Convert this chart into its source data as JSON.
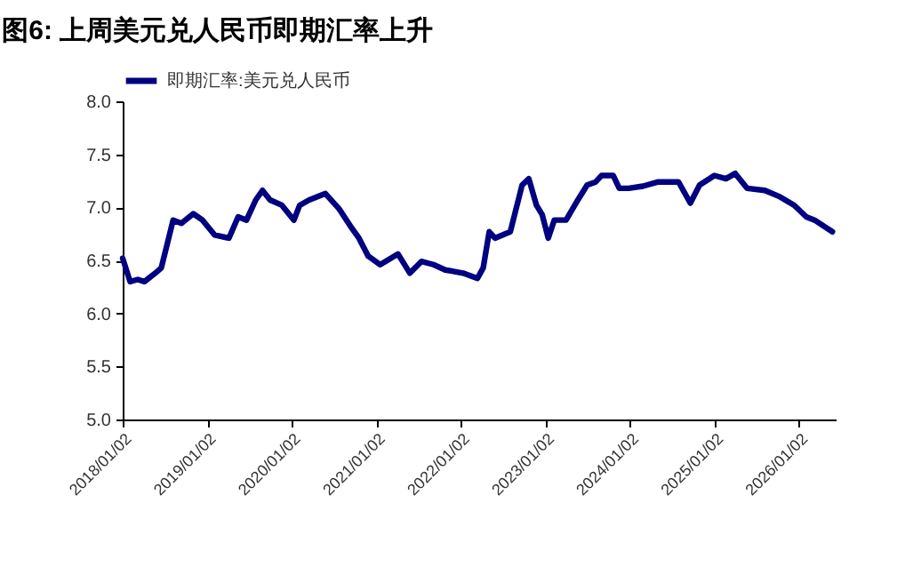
{
  "chart_data": {
    "type": "line",
    "title": "图6:  上周美元兑人民币即期汇率上升",
    "x": [
      "2018-01-02",
      "2018-02-03",
      "2018-03-08",
      "2018-04-06",
      "2018-05-23",
      "2018-06-18",
      "2018-07-14",
      "2018-08-08",
      "2018-09-13",
      "2018-11-03",
      "2018-12-13",
      "2019-02-03",
      "2019-04-06",
      "2019-05-16",
      "2019-06-21",
      "2019-07-31",
      "2019-08-29",
      "2019-10-01",
      "2019-11-21",
      "2020-01-12",
      "2020-02-06",
      "2020-03-18",
      "2020-05-27",
      "2020-07-24",
      "2020-09-13",
      "2020-10-19",
      "2020-11-28",
      "2021-01-19",
      "2021-04-06",
      "2021-05-27",
      "2021-07-16",
      "2021-09-06",
      "2021-10-27",
      "2022-01-12",
      "2022-03-15",
      "2022-04-09",
      "2022-05-05",
      "2022-05-30",
      "2022-08-04",
      "2022-09-24",
      "2022-10-23",
      "2022-11-25",
      "2022-12-20",
      "2023-01-15",
      "2023-02-10",
      "2023-04-02",
      "2023-05-23",
      "2023-07-02",
      "2023-08-08",
      "2023-09-02",
      "2023-10-23",
      "2023-11-18",
      "2023-12-28",
      "2024-02-28",
      "2024-05-04",
      "2024-07-31",
      "2024-09-20",
      "2024-10-30",
      "2025-01-02",
      "2025-02-21",
      "2025-04-02",
      "2025-05-23",
      "2025-08-08",
      "2025-10-12",
      "2025-12-13",
      "2026-02-03",
      "2026-03-11",
      "2026-05-27"
    ],
    "series": [
      {
        "name": "即期汇率:美元兑人民币",
        "color": "#000080",
        "values": [
          6.52,
          6.3,
          6.32,
          6.3,
          6.38,
          6.43,
          6.66,
          6.88,
          6.85,
          6.94,
          6.88,
          6.74,
          6.71,
          6.91,
          6.88,
          7.07,
          7.16,
          7.07,
          7.02,
          6.88,
          7.02,
          7.07,
          7.13,
          6.99,
          6.82,
          6.71,
          6.54,
          6.46,
          6.56,
          6.38,
          6.49,
          6.46,
          6.41,
          6.38,
          6.33,
          6.43,
          6.77,
          6.71,
          6.77,
          7.21,
          7.27,
          7.02,
          6.93,
          6.71,
          6.88,
          6.88,
          7.07,
          7.21,
          7.24,
          7.3,
          7.3,
          7.18,
          7.18,
          7.2,
          7.24,
          7.24,
          7.04,
          7.21,
          7.3,
          7.27,
          7.32,
          7.18,
          7.16,
          7.1,
          7.02,
          6.91,
          6.88,
          6.77
        ]
      }
    ],
    "xlim": [
      "2018-01-02",
      "2026-06-10"
    ],
    "xticks": [
      {
        "value": "2018-01-02",
        "label": "2018/01/02"
      },
      {
        "value": "2019-01-02",
        "label": "2019/01/02"
      },
      {
        "value": "2020-01-02",
        "label": "2020/01/02"
      },
      {
        "value": "2021-01-02",
        "label": "2021/01/02"
      },
      {
        "value": "2022-01-02",
        "label": "2022/01/02"
      },
      {
        "value": "2023-01-02",
        "label": "2023/01/02"
      },
      {
        "value": "2024-01-02",
        "label": "2024/01/02"
      },
      {
        "value": "2025-01-02",
        "label": "2025/01/02"
      },
      {
        "value": "2026-01-02",
        "label": "2026/01/02"
      }
    ],
    "ylim": [
      5,
      8
    ],
    "yticks": [
      {
        "value": 5,
        "label": "5.0"
      },
      {
        "value": 5.5,
        "label": "5.5"
      },
      {
        "value": 6,
        "label": "6.0"
      },
      {
        "value": 6.5,
        "label": "6.5"
      },
      {
        "value": 7,
        "label": "7.0"
      },
      {
        "value": 7.5,
        "label": "7.5"
      },
      {
        "value": 8,
        "label": "8.0"
      }
    ],
    "legend": "top",
    "grid": false
  }
}
